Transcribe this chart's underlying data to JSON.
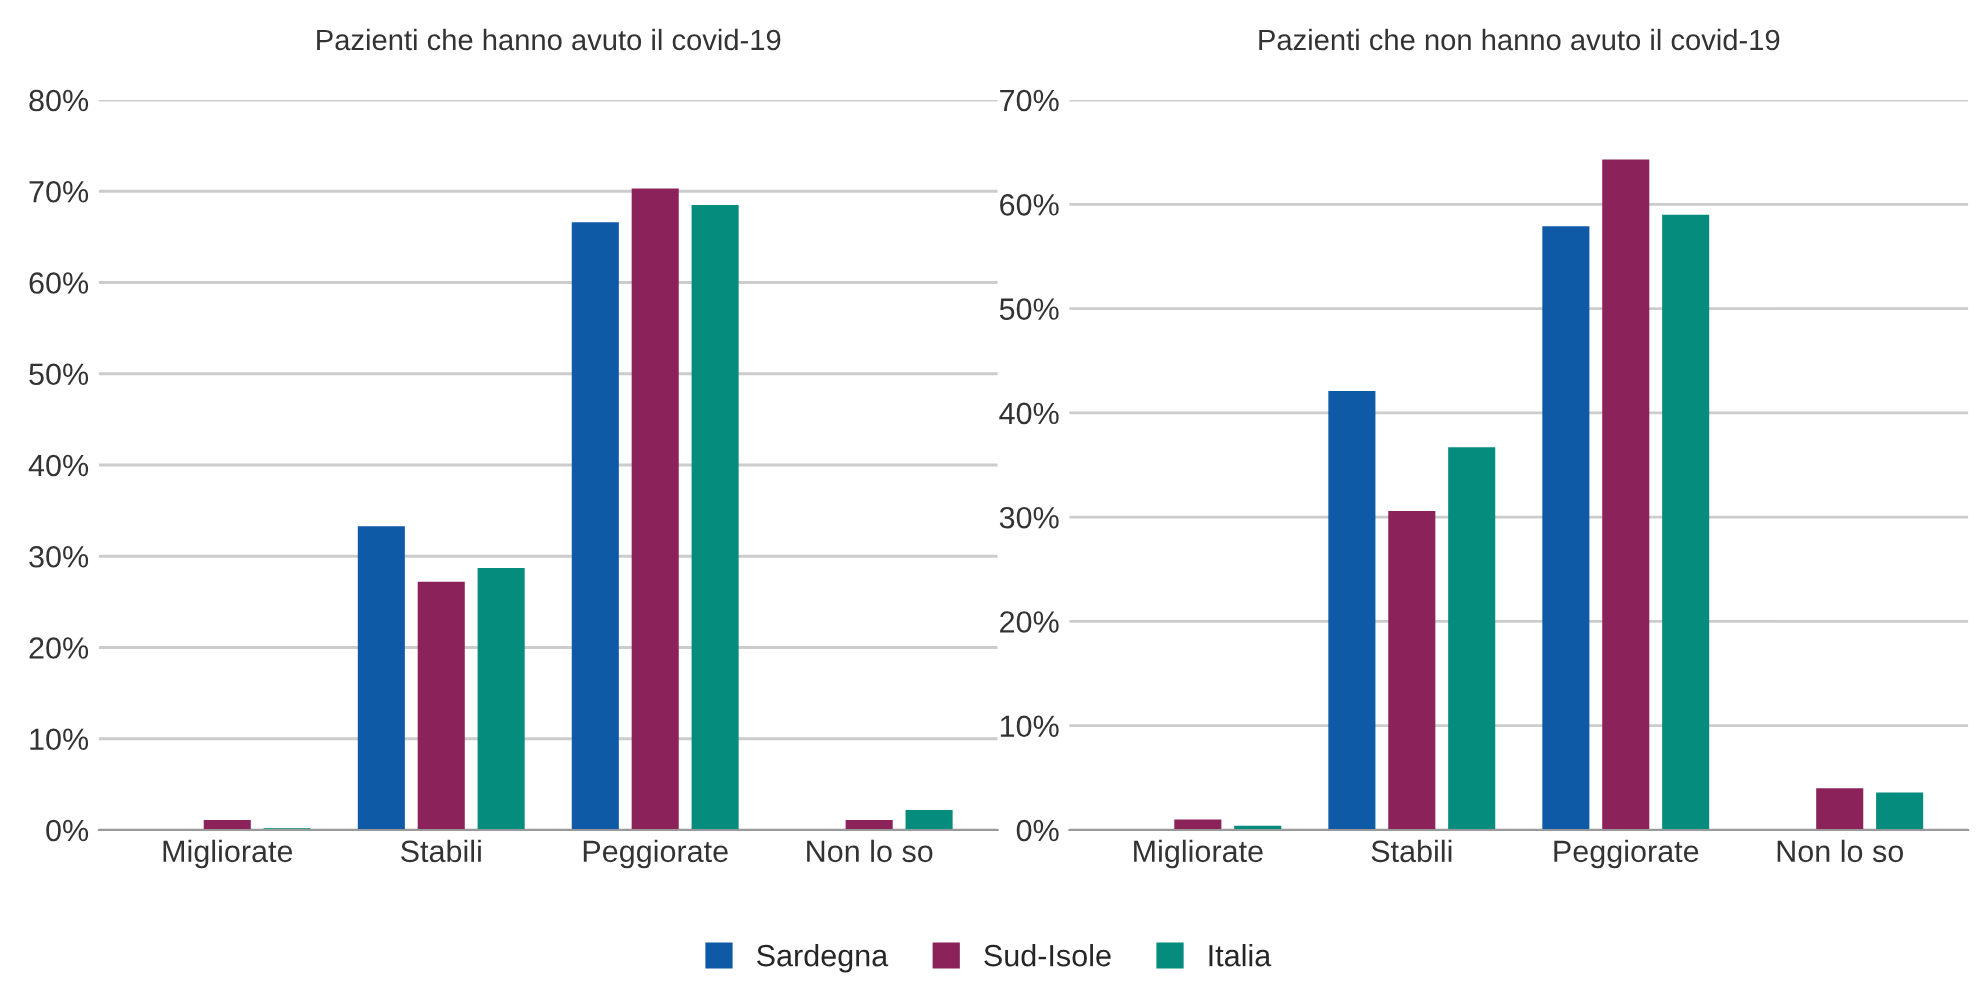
{
  "chart_data": [
    {
      "type": "bar",
      "title": "Pazienti che hanno avuto il covid-19",
      "categories": [
        "Migliorate",
        "Stabili",
        "Peggiorate",
        "Non lo so"
      ],
      "series": [
        {
          "name": "Sardegna",
          "color": "#0e5aa7",
          "values": [
            0,
            33.3,
            66.6,
            0
          ]
        },
        {
          "name": "Sud-Isole",
          "color": "#8b2259",
          "values": [
            1.1,
            27.2,
            70.3,
            1.1
          ]
        },
        {
          "name": "Italia",
          "color": "#068c7c",
          "values": [
            0.2,
            28.7,
            68.5,
            2.2
          ]
        }
      ],
      "ylim": [
        0,
        80
      ],
      "yticks": [
        {
          "value": 0,
          "label": "0%"
        },
        {
          "value": 10,
          "label": "10%"
        },
        {
          "value": 20,
          "label": "20%"
        },
        {
          "value": 30,
          "label": "30%"
        },
        {
          "value": 40,
          "label": "40%"
        },
        {
          "value": 50,
          "label": "50%"
        },
        {
          "value": 60,
          "label": "60%"
        },
        {
          "value": 70,
          "label": "70%"
        },
        {
          "value": 80,
          "label": "80%"
        }
      ],
      "grid": "y",
      "legend": "bottom"
    },
    {
      "type": "bar",
      "title": "Pazienti che non hanno avuto il covid-19",
      "categories": [
        "Migliorate",
        "Stabili",
        "Peggiorate",
        "Non lo so"
      ],
      "series": [
        {
          "color": "#0e5aa7",
          "values": [
            0,
            42.1,
            57.9,
            0
          ]
        },
        {
          "color": "#8b2259",
          "values": [
            1.0,
            30.6,
            64.3,
            4.0
          ]
        },
        {
          "color": "#068c7c",
          "values": [
            0.4,
            36.7,
            59.0,
            3.6
          ]
        }
      ],
      "ylim": [
        0,
        70
      ],
      "yticks": [
        {
          "value": 0,
          "label": "0%"
        },
        {
          "value": 10,
          "label": "10%"
        },
        {
          "value": 20,
          "label": "20%"
        },
        {
          "value": 30,
          "label": "30%"
        },
        {
          "value": 40,
          "label": "40%"
        },
        {
          "value": 50,
          "label": "50%"
        },
        {
          "value": 60,
          "label": "60%"
        },
        {
          "value": 70,
          "label": "70%"
        }
      ],
      "grid": "y"
    }
  ]
}
